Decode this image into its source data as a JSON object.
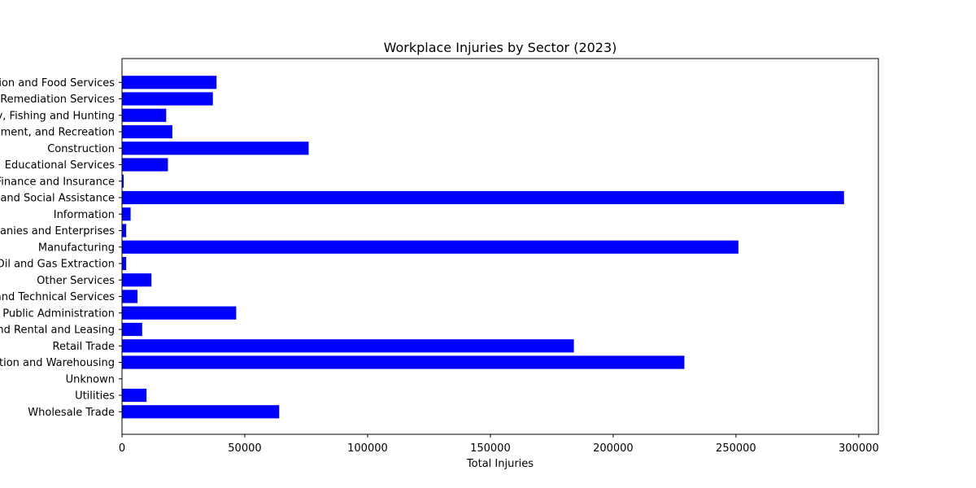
{
  "chart_data": {
    "type": "bar",
    "orientation": "horizontal",
    "title": "Workplace Injuries by Sector (2023)",
    "xlabel": "Total Injuries",
    "ylabel": "",
    "xlim": [
      0,
      308000
    ],
    "xticks": [
      0,
      50000,
      100000,
      150000,
      200000,
      250000,
      300000
    ],
    "xtick_labels": [
      "0",
      "50000",
      "100000",
      "150000",
      "200000",
      "250000",
      "300000"
    ],
    "grid": false,
    "legend": "none",
    "bar_color": "#0000ff",
    "categories": [
      "Accommodation and Food Services",
      "Administrative and Support and Waste Management and Remediation Services",
      "Agriculture, Forestry, Fishing and Hunting",
      "Arts, Entertainment, and Recreation",
      "Construction",
      "Educational Services",
      "Finance and Insurance",
      "Health Care and Social Assistance",
      "Information",
      "Management of Companies and Enterprises",
      "Manufacturing",
      "Mining, Quarrying, and Oil and Gas Extraction",
      "Other Services",
      "Professional, Scientific, and Technical Services",
      "Public Administration",
      "Real Estate and Rental and Leasing",
      "Retail Trade",
      "Transportation and Warehousing",
      "Unknown",
      "Utilities",
      "Wholesale Trade"
    ],
    "values": [
      38500,
      37000,
      18000,
      20500,
      76000,
      18700,
      700,
      294000,
      3500,
      1700,
      251000,
      1700,
      12000,
      6300,
      46500,
      8200,
      184000,
      229000,
      0,
      10000,
      64000
    ]
  }
}
